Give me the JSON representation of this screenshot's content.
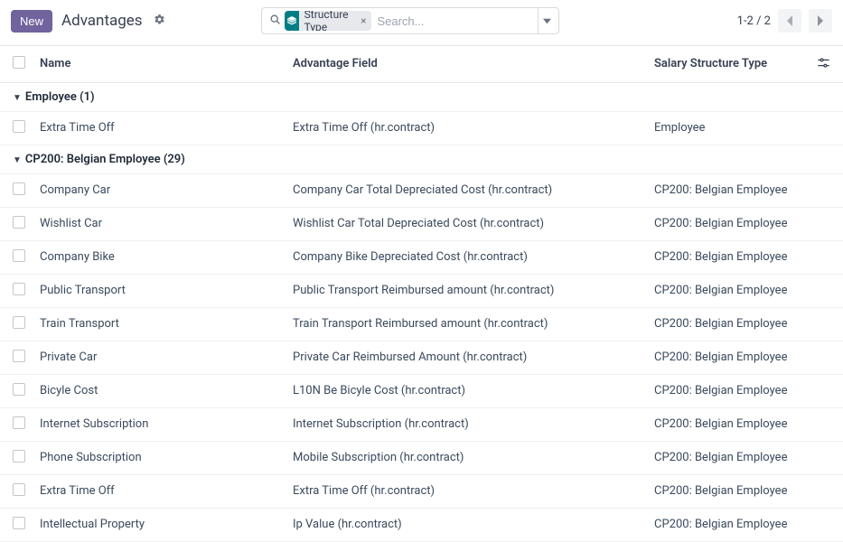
{
  "toolbar": {
    "new_label": "New",
    "title": "Advantages"
  },
  "search": {
    "placeholder": "Search...",
    "facet_label": "Structure Type"
  },
  "pager": {
    "text": "1-2 / 2"
  },
  "columns": {
    "name": "Name",
    "advantage_field": "Advantage Field",
    "structure_type": "Salary Structure Type"
  },
  "groups": [
    {
      "label": "Employee",
      "count": 1,
      "rows": [
        {
          "name": "Extra Time Off",
          "field": "Extra Time Off (hr.contract)",
          "structure": "Employee"
        }
      ]
    },
    {
      "label": "CP200: Belgian Employee",
      "count": 29,
      "rows": [
        {
          "name": "Company Car",
          "field": "Company Car Total Depreciated Cost (hr.contract)",
          "structure": "CP200: Belgian Employee"
        },
        {
          "name": "Wishlist Car",
          "field": "Wishlist Car Total Depreciated Cost (hr.contract)",
          "structure": "CP200: Belgian Employee"
        },
        {
          "name": "Company Bike",
          "field": "Company Bike Depreciated Cost (hr.contract)",
          "structure": "CP200: Belgian Employee"
        },
        {
          "name": "Public Transport",
          "field": "Public Transport Reimbursed amount (hr.contract)",
          "structure": "CP200: Belgian Employee"
        },
        {
          "name": "Train Transport",
          "field": "Train Transport Reimbursed amount (hr.contract)",
          "structure": "CP200: Belgian Employee"
        },
        {
          "name": "Private Car",
          "field": "Private Car Reimbursed Amount (hr.contract)",
          "structure": "CP200: Belgian Employee"
        },
        {
          "name": "Bicyle Cost",
          "field": "L10N Be Bicyle Cost (hr.contract)",
          "structure": "CP200: Belgian Employee"
        },
        {
          "name": "Internet Subscription",
          "field": "Internet Subscription (hr.contract)",
          "structure": "CP200: Belgian Employee"
        },
        {
          "name": "Phone Subscription",
          "field": "Mobile Subscription (hr.contract)",
          "structure": "CP200: Belgian Employee"
        },
        {
          "name": "Extra Time Off",
          "field": "Extra Time Off (hr.contract)",
          "structure": "CP200: Belgian Employee"
        },
        {
          "name": "Intellectual Property",
          "field": "Ip Value (hr.contract)",
          "structure": "CP200: Belgian Employee"
        }
      ]
    }
  ]
}
